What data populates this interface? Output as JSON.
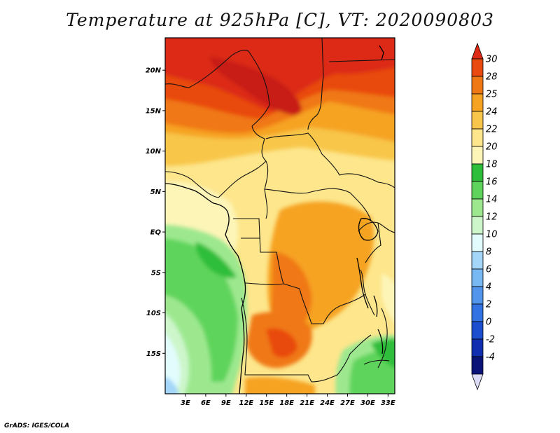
{
  "title": "Temperature at 925hPa [C], VT: 2020090803",
  "footer": "GrADS: IGES/COLA",
  "map": {
    "lon_range": [
      0,
      34
    ],
    "lat_range": [
      -20,
      24
    ],
    "y_ticks": [
      {
        "lat": 20,
        "label": "20N"
      },
      {
        "lat": 15,
        "label": "15N"
      },
      {
        "lat": 10,
        "label": "10N"
      },
      {
        "lat": 5,
        "label": "5N"
      },
      {
        "lat": 0,
        "label": "EQ"
      },
      {
        "lat": -5,
        "label": "5S"
      },
      {
        "lat": -10,
        "label": "10S"
      },
      {
        "lat": -15,
        "label": "15S"
      }
    ],
    "x_ticks": [
      {
        "lon": 3,
        "label": "3E"
      },
      {
        "lon": 6,
        "label": "6E"
      },
      {
        "lon": 9,
        "label": "9E"
      },
      {
        "lon": 12,
        "label": "12E"
      },
      {
        "lon": 15,
        "label": "15E"
      },
      {
        "lon": 18,
        "label": "18E"
      },
      {
        "lon": 21,
        "label": "21E"
      },
      {
        "lon": 24,
        "label": "24E"
      },
      {
        "lon": 27,
        "label": "27E"
      },
      {
        "lon": 30,
        "label": "30E"
      },
      {
        "lon": 33,
        "label": "33E"
      }
    ]
  },
  "colorbar": {
    "labels": [
      "30",
      "28",
      "25",
      "24",
      "22",
      "20",
      "18",
      "16",
      "14",
      "12",
      "10",
      "8",
      "6",
      "4",
      "2",
      "0",
      "-2",
      "-4"
    ],
    "colors": [
      "#dc2a14",
      "#e84a10",
      "#f07814",
      "#f6a323",
      "#f8c64a",
      "#fde68c",
      "#fdf5b8",
      "#2fbe3a",
      "#5fd45c",
      "#9de88f",
      "#cdf6cb",
      "#e2fcfd",
      "#a3d6f8",
      "#78b8f3",
      "#5196ec",
      "#3273e4",
      "#1c4fd0",
      "#0f2fb0",
      "#0a1478",
      "#dcdcf6"
    ]
  }
}
